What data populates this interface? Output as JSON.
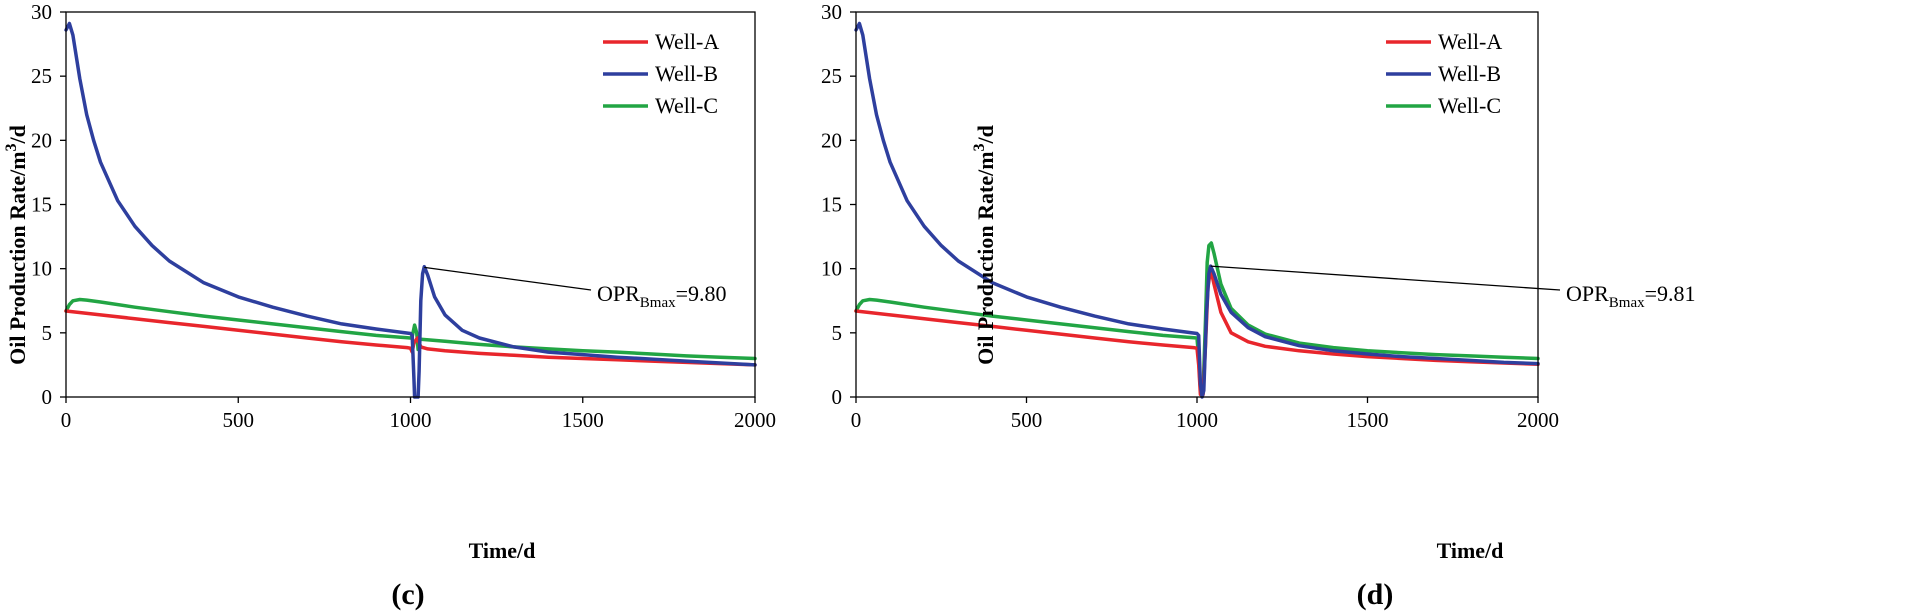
{
  "chart_data": [
    {
      "type": "line",
      "panel_label": "(c)",
      "xlabel": "Time/d",
      "ylabel": "Oil Production Rate/m",
      "ylabel_sup": "3",
      "ylabel_tail": "/d",
      "xlim": [
        0,
        2000
      ],
      "ylim": [
        0,
        30
      ],
      "xticks": [
        0,
        500,
        1000,
        1500,
        2000
      ],
      "yticks": [
        0,
        5,
        10,
        15,
        20,
        25,
        30
      ],
      "grid": false,
      "legend_position": "top-right",
      "annotation": {
        "prefix": "OPR",
        "sub": "Bmax",
        "suffix": "=9.80",
        "point": [
          1040,
          10.1
        ]
      },
      "series": [
        {
          "name": "Well-A",
          "color": "#e8262c",
          "points": [
            [
              0,
              6.7
            ],
            [
              100,
              6.4
            ],
            [
              200,
              6.1
            ],
            [
              300,
              5.8
            ],
            [
              400,
              5.5
            ],
            [
              500,
              5.2
            ],
            [
              600,
              4.9
            ],
            [
              700,
              4.6
            ],
            [
              800,
              4.3
            ],
            [
              900,
              4.05
            ],
            [
              990,
              3.85
            ],
            [
              1000,
              3.8
            ],
            [
              1005,
              3.5
            ],
            [
              1010,
              4.2
            ],
            [
              1020,
              4.6
            ],
            [
              1030,
              3.9
            ],
            [
              1050,
              3.75
            ],
            [
              1100,
              3.6
            ],
            [
              1200,
              3.4
            ],
            [
              1300,
              3.25
            ],
            [
              1400,
              3.1
            ],
            [
              1500,
              3.0
            ],
            [
              1600,
              2.9
            ],
            [
              1700,
              2.8
            ],
            [
              1800,
              2.7
            ],
            [
              1900,
              2.6
            ],
            [
              2000,
              2.5
            ]
          ]
        },
        {
          "name": "Well-B",
          "color": "#2e3f9e",
          "points": [
            [
              0,
              28.6
            ],
            [
              10,
              29.1
            ],
            [
              20,
              28.2
            ],
            [
              40,
              24.8
            ],
            [
              60,
              22.0
            ],
            [
              80,
              20.0
            ],
            [
              100,
              18.3
            ],
            [
              150,
              15.3
            ],
            [
              200,
              13.3
            ],
            [
              250,
              11.8
            ],
            [
              300,
              10.6
            ],
            [
              400,
              8.9
            ],
            [
              500,
              7.8
            ],
            [
              600,
              7.0
            ],
            [
              700,
              6.3
            ],
            [
              800,
              5.7
            ],
            [
              900,
              5.3
            ],
            [
              1000,
              4.95
            ],
            [
              1005,
              4.8
            ],
            [
              1010,
              1.5
            ],
            [
              1012,
              0
            ],
            [
              1022,
              0
            ],
            [
              1025,
              2.0
            ],
            [
              1030,
              7.5
            ],
            [
              1035,
              9.6
            ],
            [
              1040,
              10.15
            ],
            [
              1050,
              9.5
            ],
            [
              1070,
              7.8
            ],
            [
              1100,
              6.4
            ],
            [
              1150,
              5.2
            ],
            [
              1200,
              4.6
            ],
            [
              1300,
              3.9
            ],
            [
              1400,
              3.5
            ],
            [
              1500,
              3.3
            ],
            [
              1600,
              3.1
            ],
            [
              1700,
              2.95
            ],
            [
              1800,
              2.8
            ],
            [
              1900,
              2.65
            ],
            [
              2000,
              2.5
            ]
          ]
        },
        {
          "name": "Well-C",
          "color": "#22a544",
          "points": [
            [
              0,
              6.7
            ],
            [
              10,
              7.2
            ],
            [
              20,
              7.5
            ],
            [
              40,
              7.6
            ],
            [
              60,
              7.55
            ],
            [
              100,
              7.4
            ],
            [
              200,
              7.0
            ],
            [
              300,
              6.65
            ],
            [
              400,
              6.3
            ],
            [
              500,
              6.0
            ],
            [
              600,
              5.7
            ],
            [
              700,
              5.4
            ],
            [
              800,
              5.1
            ],
            [
              900,
              4.8
            ],
            [
              1000,
              4.6
            ],
            [
              1005,
              4.7
            ],
            [
              1012,
              5.6
            ],
            [
              1018,
              5.0
            ],
            [
              1022,
              3.7
            ],
            [
              1026,
              4.5
            ],
            [
              1030,
              4.5
            ],
            [
              1100,
              4.35
            ],
            [
              1200,
              4.1
            ],
            [
              1300,
              3.9
            ],
            [
              1400,
              3.75
            ],
            [
              1500,
              3.6
            ],
            [
              1600,
              3.5
            ],
            [
              1700,
              3.35
            ],
            [
              1800,
              3.2
            ],
            [
              1900,
              3.1
            ],
            [
              2000,
              3.0
            ]
          ]
        }
      ]
    },
    {
      "type": "line",
      "panel_label": "(d)",
      "xlabel": "Time/d",
      "ylabel": "Oil Production Rate/m",
      "ylabel_sup": "3",
      "ylabel_tail": "/d",
      "xlim": [
        0,
        2000
      ],
      "ylim": [
        0,
        30
      ],
      "xticks": [
        0,
        500,
        1000,
        1500,
        2000
      ],
      "yticks": [
        0,
        5,
        10,
        15,
        20,
        25,
        30
      ],
      "grid": false,
      "legend_position": "top-right",
      "annotation": {
        "prefix": "OPR",
        "sub": "Bmax",
        "suffix": "=9.81",
        "point": [
          1040,
          10.2
        ]
      },
      "series": [
        {
          "name": "Well-A",
          "color": "#e8262c",
          "points": [
            [
              0,
              6.7
            ],
            [
              100,
              6.4
            ],
            [
              200,
              6.1
            ],
            [
              300,
              5.8
            ],
            [
              400,
              5.5
            ],
            [
              500,
              5.2
            ],
            [
              600,
              4.9
            ],
            [
              700,
              4.6
            ],
            [
              800,
              4.3
            ],
            [
              900,
              4.05
            ],
            [
              990,
              3.85
            ],
            [
              1000,
              3.8
            ],
            [
              1005,
              2.5
            ],
            [
              1010,
              0.2
            ],
            [
              1018,
              0.2
            ],
            [
              1025,
              4.0
            ],
            [
              1032,
              8.5
            ],
            [
              1040,
              10.0
            ],
            [
              1050,
              8.8
            ],
            [
              1070,
              6.6
            ],
            [
              1100,
              5.0
            ],
            [
              1150,
              4.3
            ],
            [
              1200,
              3.95
            ],
            [
              1300,
              3.6
            ],
            [
              1400,
              3.35
            ],
            [
              1500,
              3.15
            ],
            [
              1600,
              3.0
            ],
            [
              1700,
              2.85
            ],
            [
              1800,
              2.75
            ],
            [
              1900,
              2.65
            ],
            [
              2000,
              2.55
            ]
          ]
        },
        {
          "name": "Well-B",
          "color": "#2e3f9e",
          "points": [
            [
              0,
              28.6
            ],
            [
              10,
              29.1
            ],
            [
              20,
              28.2
            ],
            [
              40,
              24.8
            ],
            [
              60,
              22.0
            ],
            [
              80,
              20.0
            ],
            [
              100,
              18.3
            ],
            [
              150,
              15.3
            ],
            [
              200,
              13.3
            ],
            [
              250,
              11.8
            ],
            [
              300,
              10.6
            ],
            [
              400,
              8.9
            ],
            [
              500,
              7.8
            ],
            [
              600,
              7.0
            ],
            [
              700,
              6.3
            ],
            [
              800,
              5.7
            ],
            [
              900,
              5.3
            ],
            [
              1000,
              4.95
            ],
            [
              1005,
              4.8
            ],
            [
              1010,
              1.0
            ],
            [
              1015,
              0
            ],
            [
              1020,
              0.5
            ],
            [
              1028,
              6.5
            ],
            [
              1035,
              9.6
            ],
            [
              1040,
              10.2
            ],
            [
              1050,
              9.6
            ],
            [
              1070,
              8.0
            ],
            [
              1100,
              6.6
            ],
            [
              1150,
              5.4
            ],
            [
              1200,
              4.7
            ],
            [
              1300,
              4.0
            ],
            [
              1400,
              3.6
            ],
            [
              1500,
              3.35
            ],
            [
              1600,
              3.15
            ],
            [
              1700,
              3.0
            ],
            [
              1800,
              2.85
            ],
            [
              1900,
              2.7
            ],
            [
              2000,
              2.6
            ]
          ]
        },
        {
          "name": "Well-C",
          "color": "#22a544",
          "points": [
            [
              0,
              6.7
            ],
            [
              10,
              7.2
            ],
            [
              20,
              7.5
            ],
            [
              40,
              7.6
            ],
            [
              60,
              7.55
            ],
            [
              100,
              7.4
            ],
            [
              200,
              7.0
            ],
            [
              300,
              6.65
            ],
            [
              400,
              6.3
            ],
            [
              500,
              6.0
            ],
            [
              600,
              5.7
            ],
            [
              700,
              5.4
            ],
            [
              800,
              5.1
            ],
            [
              900,
              4.8
            ],
            [
              1000,
              4.6
            ],
            [
              1005,
              3.0
            ],
            [
              1010,
              0.5
            ],
            [
              1018,
              0.5
            ],
            [
              1025,
              6.0
            ],
            [
              1030,
              10.5
            ],
            [
              1035,
              11.8
            ],
            [
              1042,
              12.0
            ],
            [
              1050,
              11.2
            ],
            [
              1070,
              8.8
            ],
            [
              1100,
              6.9
            ],
            [
              1150,
              5.6
            ],
            [
              1200,
              4.9
            ],
            [
              1300,
              4.2
            ],
            [
              1400,
              3.85
            ],
            [
              1500,
              3.6
            ],
            [
              1600,
              3.45
            ],
            [
              1700,
              3.3
            ],
            [
              1800,
              3.2
            ],
            [
              1900,
              3.1
            ],
            [
              2000,
              3.0
            ]
          ]
        }
      ]
    }
  ]
}
